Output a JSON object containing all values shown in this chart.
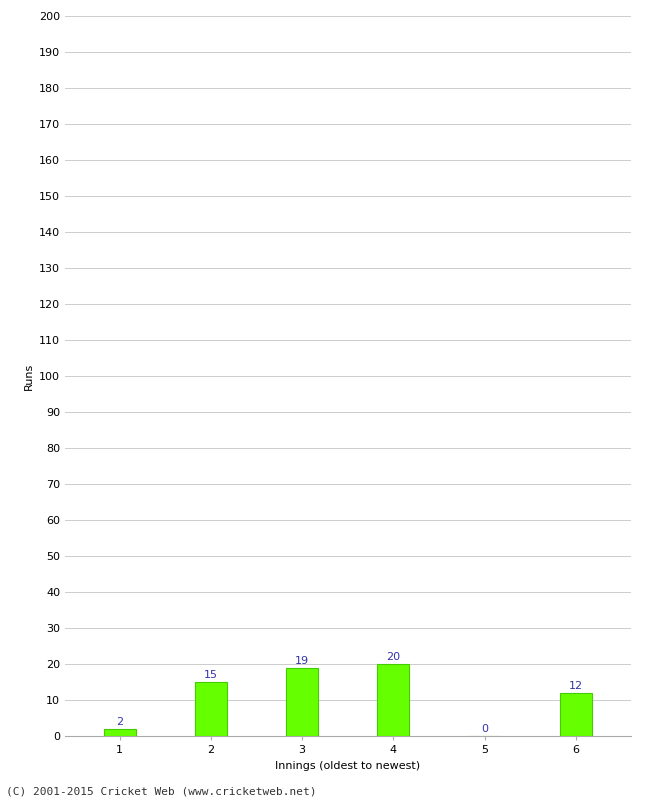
{
  "categories": [
    1,
    2,
    3,
    4,
    5,
    6
  ],
  "values": [
    2,
    15,
    19,
    20,
    0,
    12
  ],
  "bar_color": "#66ff00",
  "bar_edge_color": "#44cc00",
  "label_color": "#3333aa",
  "ylabel": "Runs",
  "xlabel": "Innings (oldest to newest)",
  "ylim": [
    0,
    200
  ],
  "yticks": [
    0,
    10,
    20,
    30,
    40,
    50,
    60,
    70,
    80,
    90,
    100,
    110,
    120,
    130,
    140,
    150,
    160,
    170,
    180,
    190,
    200
  ],
  "footer": "(C) 2001-2015 Cricket Web (www.cricketweb.net)",
  "background_color": "#ffffff",
  "grid_color": "#cccccc",
  "label_fontsize": 8,
  "axis_fontsize": 8,
  "footer_fontsize": 8,
  "ylabel_fontsize": 8,
  "bar_width": 0.35
}
